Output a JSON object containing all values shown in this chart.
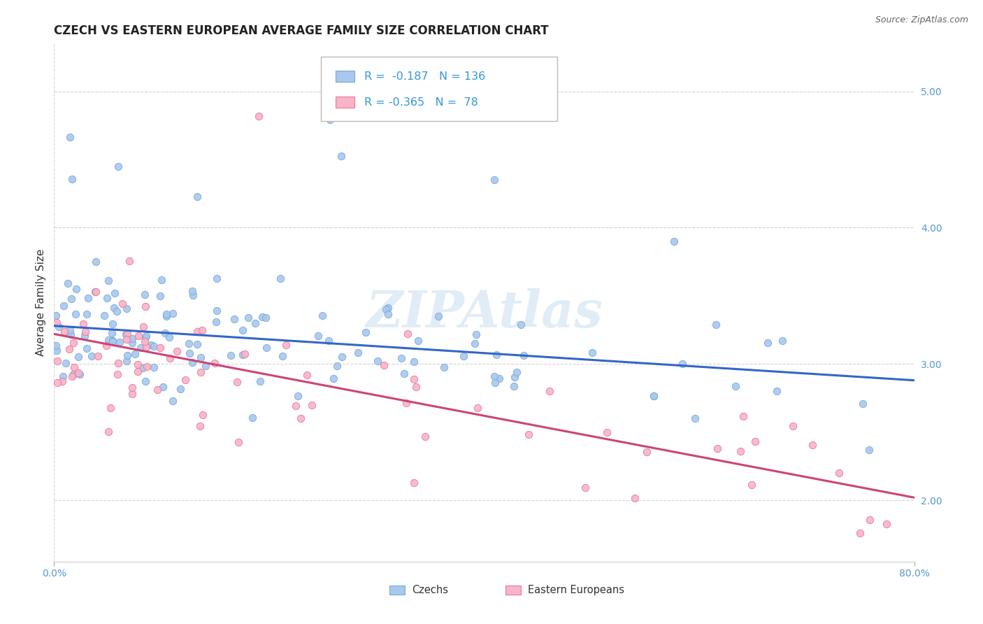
{
  "title": "CZECH VS EASTERN EUROPEAN AVERAGE FAMILY SIZE CORRELATION CHART",
  "source": "Source: ZipAtlas.com",
  "ylabel": "Average Family Size",
  "xlim": [
    0.0,
    0.8
  ],
  "ylim": [
    1.55,
    5.35
  ],
  "yticks": [
    2.0,
    3.0,
    4.0,
    5.0
  ],
  "xtick_left": "0.0%",
  "xtick_right": "80.0%",
  "background_color": "#ffffff",
  "grid_color": "#c8c8c8",
  "czechs_color": "#a8c8f0",
  "czechs_edge": "#7aaad0",
  "czechs_trend_color": "#3366cc",
  "czechs_R": "-0.187",
  "czechs_N": "136",
  "czechs_trend_x": [
    0.0,
    0.8
  ],
  "czechs_trend_y": [
    3.28,
    2.88
  ],
  "eastern_color": "#f8b4c8",
  "eastern_edge": "#e87898",
  "eastern_trend_color": "#cc4477",
  "eastern_R": "-0.365",
  "eastern_N": "78",
  "eastern_trend_x": [
    0.0,
    0.8
  ],
  "eastern_trend_y": [
    3.22,
    2.02
  ],
  "watermark": "ZIPAtlas",
  "watermark_color": "#c8dff0",
  "legend_czechs": "Czechs",
  "legend_eastern": "Eastern Europeans",
  "title_fontsize": 12,
  "axis_fontsize": 10,
  "source_fontsize": 9
}
